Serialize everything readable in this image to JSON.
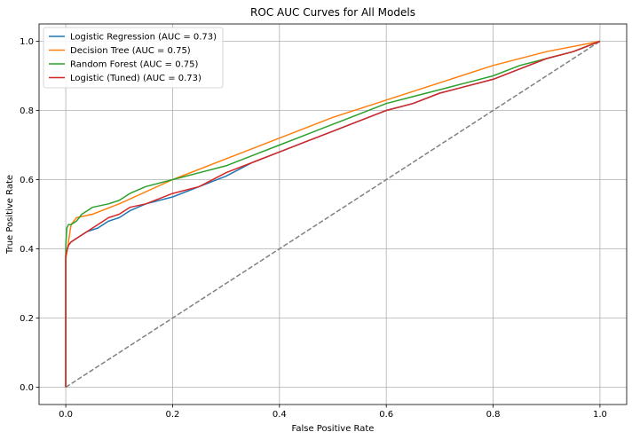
{
  "chart_data": {
    "type": "line",
    "title": "ROC AUC Curves for All Models",
    "xlabel": "False Positive Rate",
    "ylabel": "True Positive Rate",
    "xlim": [
      -0.05,
      1.05
    ],
    "ylim": [
      -0.05,
      1.05
    ],
    "xticks": [
      0.0,
      0.2,
      0.4,
      0.6,
      0.8,
      1.0
    ],
    "yticks": [
      0.0,
      0.2,
      0.4,
      0.6,
      0.8,
      1.0
    ],
    "xtick_labels": [
      "0.0",
      "0.2",
      "0.4",
      "0.6",
      "0.8",
      "1.0"
    ],
    "ytick_labels": [
      "0.0",
      "0.2",
      "0.4",
      "0.6",
      "0.8",
      "1.0"
    ],
    "grid": true,
    "legend_position": "top-left",
    "series": [
      {
        "name": "Logistic Regression (AUC = 0.73)",
        "color": "#1f77b4",
        "x": [
          0,
          0.0,
          0.003,
          0.005,
          0.01,
          0.02,
          0.04,
          0.06,
          0.08,
          0.1,
          0.12,
          0.15,
          0.2,
          0.25,
          0.3,
          0.35,
          0.4,
          0.45,
          0.5,
          0.55,
          0.6,
          0.65,
          0.7,
          0.75,
          0.8,
          0.85,
          0.9,
          0.95,
          1.0
        ],
        "y": [
          0,
          0.38,
          0.4,
          0.41,
          0.42,
          0.43,
          0.45,
          0.46,
          0.48,
          0.49,
          0.51,
          0.53,
          0.55,
          0.58,
          0.61,
          0.65,
          0.68,
          0.71,
          0.74,
          0.77,
          0.8,
          0.82,
          0.85,
          0.87,
          0.89,
          0.92,
          0.95,
          0.97,
          1.0
        ]
      },
      {
        "name": "Decision Tree (AUC = 0.75)",
        "color": "#ff7f0e",
        "x": [
          0,
          0.0,
          0.005,
          0.01,
          0.02,
          0.05,
          0.1,
          0.2,
          0.3,
          0.4,
          0.5,
          0.6,
          0.7,
          0.8,
          0.9,
          1.0
        ],
        "y": [
          0,
          0.37,
          0.42,
          0.47,
          0.49,
          0.5,
          0.53,
          0.6,
          0.66,
          0.72,
          0.78,
          0.83,
          0.88,
          0.93,
          0.97,
          1.0
        ]
      },
      {
        "name": "Random Forest (AUC = 0.75)",
        "color": "#2ca02c",
        "x": [
          0,
          0.0,
          0.002,
          0.005,
          0.01,
          0.02,
          0.03,
          0.05,
          0.08,
          0.1,
          0.12,
          0.15,
          0.2,
          0.25,
          0.3,
          0.35,
          0.4,
          0.45,
          0.5,
          0.55,
          0.6,
          0.65,
          0.7,
          0.75,
          0.8,
          0.85,
          0.9,
          0.95,
          1.0
        ],
        "y": [
          0,
          0.41,
          0.46,
          0.47,
          0.47,
          0.48,
          0.5,
          0.52,
          0.53,
          0.54,
          0.56,
          0.58,
          0.6,
          0.62,
          0.64,
          0.67,
          0.7,
          0.73,
          0.76,
          0.79,
          0.82,
          0.84,
          0.86,
          0.88,
          0.9,
          0.93,
          0.95,
          0.97,
          1.0
        ]
      },
      {
        "name": "Logistic (Tuned) (AUC = 0.73)",
        "color": "#d62728",
        "x": [
          0,
          0.0,
          0.003,
          0.005,
          0.01,
          0.02,
          0.04,
          0.06,
          0.08,
          0.1,
          0.12,
          0.15,
          0.2,
          0.25,
          0.3,
          0.35,
          0.4,
          0.45,
          0.5,
          0.55,
          0.6,
          0.65,
          0.7,
          0.75,
          0.8,
          0.85,
          0.9,
          0.95,
          1.0
        ],
        "y": [
          0,
          0.38,
          0.4,
          0.41,
          0.42,
          0.43,
          0.45,
          0.47,
          0.49,
          0.5,
          0.52,
          0.53,
          0.56,
          0.58,
          0.62,
          0.65,
          0.68,
          0.71,
          0.74,
          0.77,
          0.8,
          0.82,
          0.85,
          0.87,
          0.89,
          0.92,
          0.95,
          0.97,
          1.0
        ]
      }
    ],
    "reference_line": {
      "color": "#808080",
      "style": "dashed",
      "x": [
        0,
        1
      ],
      "y": [
        0,
        1
      ]
    }
  }
}
